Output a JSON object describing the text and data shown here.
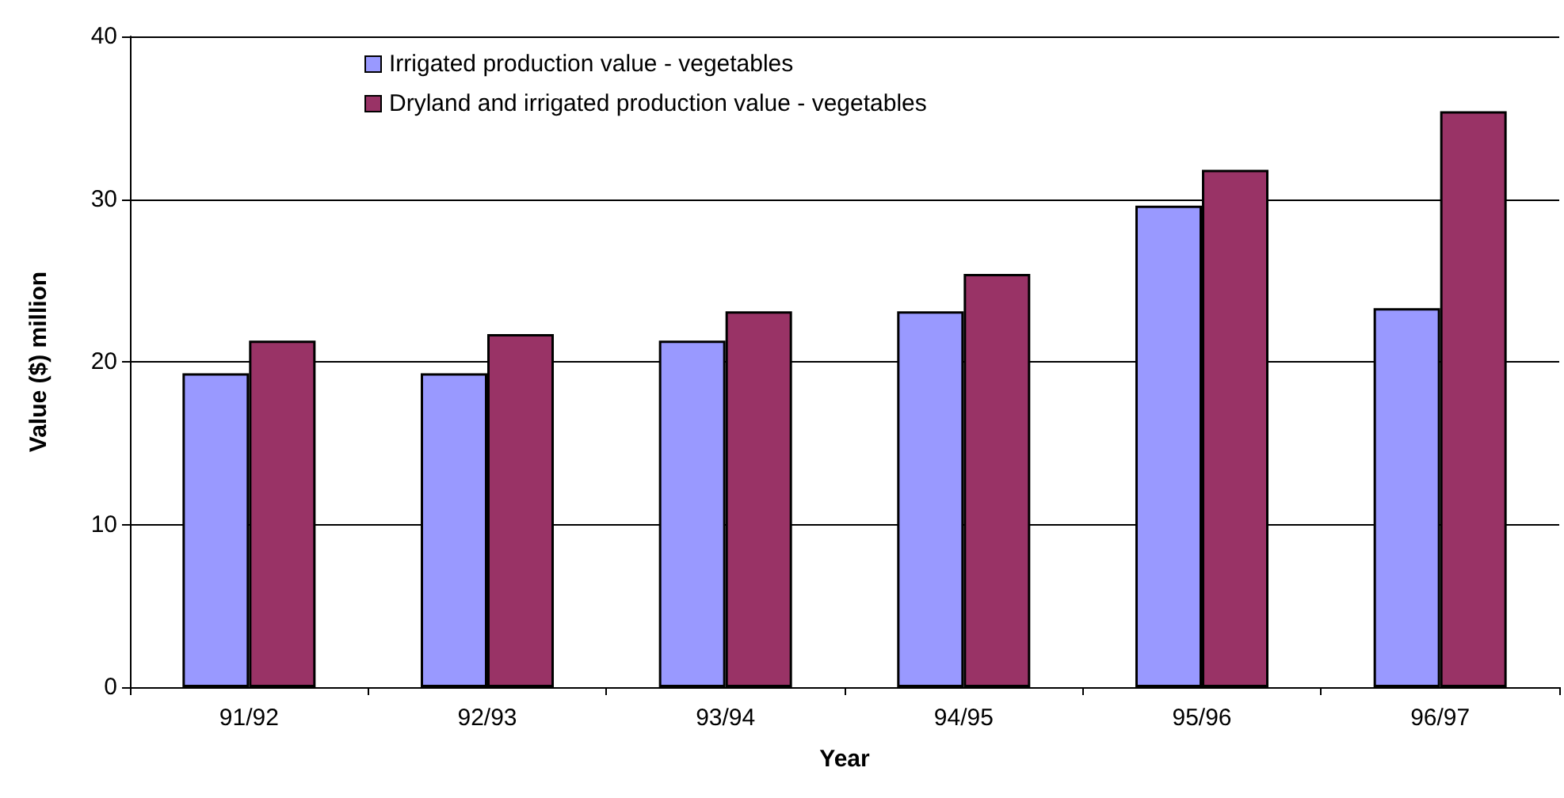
{
  "chart_data": {
    "type": "bar",
    "xlabel": "Year",
    "ylabel": "Value ($) million",
    "categories": [
      "91/92",
      "92/93",
      "93/94",
      "94/95",
      "95/96",
      "96/97"
    ],
    "series": [
      {
        "name": "Irrigated production value - vegetables",
        "color": "#9999ff",
        "values": [
          19.3,
          19.3,
          21.3,
          23.1,
          29.6,
          23.3
        ]
      },
      {
        "name": "Dryland and irrigated production value - vegetables",
        "color": "#993366",
        "values": [
          21.3,
          21.7,
          23.1,
          25.4,
          31.8,
          35.4
        ]
      }
    ],
    "ylim": [
      0,
      40
    ],
    "yticks": [
      0,
      10,
      20,
      30,
      40
    ],
    "grid": "y",
    "legend": "top"
  }
}
